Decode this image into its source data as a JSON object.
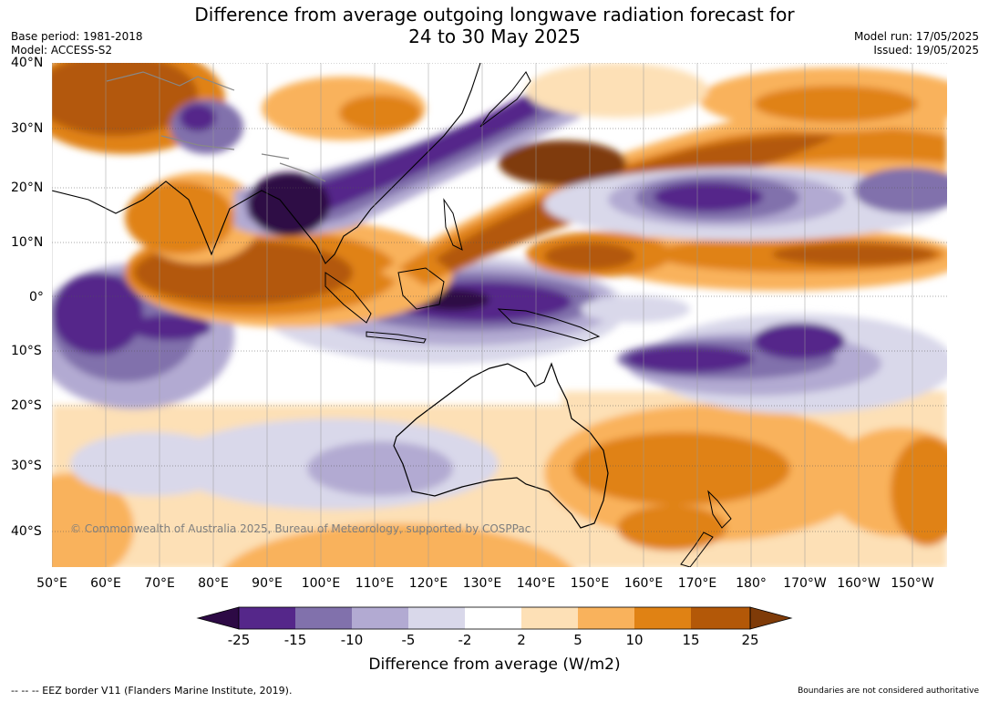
{
  "title_line1": "Difference from average outgoing longwave radiation forecast for",
  "title_line2": "24 to 30 May 2025",
  "base_period": "Base period: 1981-2018",
  "model": "Model: ACCESS-S2",
  "model_run": "Model run: 17/05/2025",
  "issued": "Issued: 19/05/2025",
  "watermark": "© Commonwealth of Australia 2025, Bureau of Meteorology, supported by COSPPac",
  "lat_labels": [
    "40°N",
    "30°N",
    "20°N",
    "10°N",
    "0°",
    "10°S",
    "20°S",
    "30°S",
    "40°S"
  ],
  "lon_labels": [
    "50°E",
    "60°E",
    "70°E",
    "80°E",
    "90°E",
    "100°E",
    "110°E",
    "120°E",
    "130°E",
    "140°E",
    "150°E",
    "160°E",
    "170°E",
    "180°",
    "170°W",
    "160°W",
    "150°W"
  ],
  "colorbar": {
    "title": "Difference from average (W/m2)",
    "ticks": [
      "-25",
      "-15",
      "-10",
      "-5",
      "-2",
      "2",
      "5",
      "10",
      "15",
      "25"
    ],
    "colors": {
      "lt_-25": "#2d0a45",
      "-25_-15": "#55278a",
      "-15_-10": "#8171ac",
      "-10_-5": "#b2aad2",
      "-5_-2": "#d9d8ea",
      "-2_2": "#ffffff",
      "2_5": "#fde0b6",
      "5_10": "#f9b25c",
      "10_15": "#e08214",
      "15_25": "#b35808",
      "gt_25": "#7f3b08"
    }
  },
  "footer_left": "--  --  -- EEZ border V11 (Flanders Marine Institute, 2019).",
  "footer_right": "Boundaries are not considered authoritative"
}
